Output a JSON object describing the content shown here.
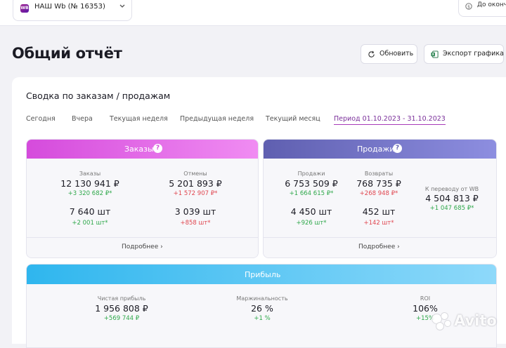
{
  "topbar": {
    "shop_badge": "WB",
    "shop_name": "НАШ Wb (№ 16353)",
    "right_text": "До оконча"
  },
  "page": {
    "title": "Общий отчёт"
  },
  "actions": {
    "refresh": "Обновить",
    "export": "Экспорт графика"
  },
  "summary": {
    "title": "Сводка по заказам / продажам",
    "tabs": [
      "Сегодня",
      "Вчера",
      "Текущая неделя",
      "Предыдущая неделя",
      "Текущий месяц",
      "Период 01.10.2023 - 31.10.2023"
    ],
    "active_tab": 5
  },
  "orders": {
    "title": "Заказы",
    "help": "?",
    "orders_label": "Заказы",
    "orders_sum": "12 130 941 ₽",
    "orders_sum_delta": "+3 320 682 ₽*",
    "orders_qty": "7 640 шт",
    "orders_qty_delta": "+2 001 шт*",
    "cancels_label": "Отмены",
    "cancels_sum": "5 201 893 ₽",
    "cancels_sum_delta": "+1 572 907 ₽*",
    "cancels_qty": "3 039 шт",
    "cancels_qty_delta": "+858 шт*",
    "more": "Подробнее"
  },
  "sales": {
    "title": "Продажи",
    "help": "?",
    "sales_label": "Продажи",
    "sales_sum": "6 753 509 ₽",
    "sales_sum_delta": "+1 664 615 ₽*",
    "sales_qty": "4 450 шт",
    "sales_qty_delta": "+926 шт*",
    "returns_label": "Возвраты",
    "returns_sum": "768 735 ₽",
    "returns_sum_delta": "+268 948 ₽*",
    "returns_qty": "452 шт",
    "returns_qty_delta": "+142 шт*",
    "payout_label": "К переводу от WB",
    "payout_sum": "4 504 813 ₽",
    "payout_delta": "+1 047 685 ₽*",
    "more": "Подробнее"
  },
  "profit": {
    "title": "Прибыль",
    "net_label": "Чистая прибыль",
    "net_value": "1 956 808 ₽",
    "net_delta": "+569 744 ₽",
    "margin_label": "Маржинальность",
    "margin_value": "26 %",
    "margin_delta": "+1 %",
    "roi_label": "ROI",
    "roi_value": "106%",
    "roi_delta": "+15%"
  },
  "watermark": {
    "text": "Avito"
  },
  "colors": {
    "orders_gradient": [
      "#d54bdc",
      "#f08cf2"
    ],
    "sales_gradient": [
      "#5f5fb0",
      "#8d8ee0"
    ],
    "profit_gradient": [
      "#2fb6ee",
      "#8ed9fa"
    ],
    "positive": "#2ea84a",
    "negative": "#e0464f",
    "active_tab": "#a83ab8"
  }
}
